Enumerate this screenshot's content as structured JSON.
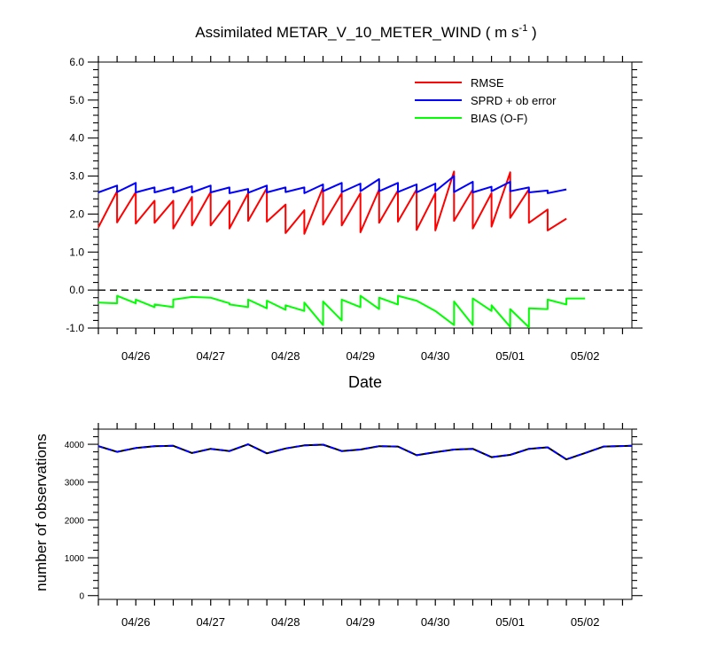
{
  "figure": {
    "title_main": "Assimilated METAR_V_10_METER_WIND ( m s",
    "title_sup": "-1",
    "title_end": " )"
  },
  "chart_data": [
    {
      "type": "line",
      "title": "Assimilated METAR_V_10_METER_WIND ( m s-1 )",
      "xlabel": "Date",
      "ylabel": "",
      "x_tick_labels": [
        "04/26",
        "04/27",
        "04/28",
        "04/29",
        "04/30",
        "05/01",
        "05/02"
      ],
      "y_tick_labels": [
        "-1.0",
        "0.0",
        "1.0",
        "2.0",
        "3.0",
        "4.0",
        "5.0",
        "6.0"
      ],
      "xlim": [
        0,
        7.125
      ],
      "ylim": [
        -1,
        6
      ],
      "reference_line": {
        "y": 0,
        "style": "dashed",
        "color": "#000000"
      },
      "legend_position": "top-right",
      "series": [
        {
          "name": "RMSE",
          "color": "#ff0000",
          "points": [
            [
              0.0,
              1.65
            ],
            [
              0.25,
              2.6
            ],
            [
              0.25,
              1.78
            ],
            [
              0.5,
              2.58
            ],
            [
              0.5,
              1.75
            ],
            [
              0.75,
              2.35
            ],
            [
              0.75,
              1.77
            ],
            [
              1.0,
              2.35
            ],
            [
              1.0,
              1.62
            ],
            [
              1.25,
              2.45
            ],
            [
              1.25,
              1.7
            ],
            [
              1.5,
              2.58
            ],
            [
              1.5,
              1.7
            ],
            [
              1.75,
              2.35
            ],
            [
              1.75,
              1.62
            ],
            [
              2.0,
              2.55
            ],
            [
              2.0,
              1.82
            ],
            [
              2.25,
              2.68
            ],
            [
              2.25,
              1.8
            ],
            [
              2.5,
              2.25
            ],
            [
              2.5,
              1.5
            ],
            [
              2.75,
              2.1
            ],
            [
              2.75,
              1.48
            ],
            [
              3.0,
              2.7
            ],
            [
              3.0,
              1.72
            ],
            [
              3.25,
              2.55
            ],
            [
              3.25,
              1.7
            ],
            [
              3.5,
              2.55
            ],
            [
              3.5,
              1.52
            ],
            [
              3.75,
              2.65
            ],
            [
              3.75,
              1.77
            ],
            [
              4.0,
              2.62
            ],
            [
              4.0,
              1.8
            ],
            [
              4.25,
              2.65
            ],
            [
              4.25,
              1.58
            ],
            [
              4.5,
              2.55
            ],
            [
              4.5,
              1.57
            ],
            [
              4.75,
              3.12
            ],
            [
              4.75,
              1.82
            ],
            [
              5.0,
              2.65
            ],
            [
              5.0,
              1.62
            ],
            [
              5.25,
              2.55
            ],
            [
              5.25,
              1.67
            ],
            [
              5.5,
              3.1
            ],
            [
              5.5,
              1.9
            ],
            [
              5.75,
              2.65
            ],
            [
              5.75,
              1.77
            ],
            [
              6.0,
              2.12
            ],
            [
              6.0,
              1.57
            ],
            [
              6.25,
              1.88
            ]
          ]
        },
        {
          "name": "SPRD + ob error",
          "color": "#0000ff",
          "points": [
            [
              0.0,
              2.57
            ],
            [
              0.25,
              2.75
            ],
            [
              0.25,
              2.58
            ],
            [
              0.5,
              2.82
            ],
            [
              0.5,
              2.57
            ],
            [
              0.75,
              2.7
            ],
            [
              0.75,
              2.57
            ],
            [
              1.0,
              2.7
            ],
            [
              1.0,
              2.57
            ],
            [
              1.25,
              2.73
            ],
            [
              1.25,
              2.57
            ],
            [
              1.5,
              2.75
            ],
            [
              1.5,
              2.57
            ],
            [
              1.75,
              2.7
            ],
            [
              1.75,
              2.55
            ],
            [
              2.0,
              2.66
            ],
            [
              2.0,
              2.56
            ],
            [
              2.25,
              2.75
            ],
            [
              2.25,
              2.57
            ],
            [
              2.5,
              2.7
            ],
            [
              2.5,
              2.58
            ],
            [
              2.75,
              2.7
            ],
            [
              2.75,
              2.55
            ],
            [
              3.0,
              2.78
            ],
            [
              3.0,
              2.6
            ],
            [
              3.25,
              2.82
            ],
            [
              3.25,
              2.58
            ],
            [
              3.5,
              2.8
            ],
            [
              3.5,
              2.6
            ],
            [
              3.75,
              2.92
            ],
            [
              3.75,
              2.6
            ],
            [
              4.0,
              2.82
            ],
            [
              4.0,
              2.58
            ],
            [
              4.25,
              2.78
            ],
            [
              4.25,
              2.57
            ],
            [
              4.5,
              2.8
            ],
            [
              4.5,
              2.6
            ],
            [
              4.75,
              3.0
            ],
            [
              4.75,
              2.58
            ],
            [
              5.0,
              2.85
            ],
            [
              5.0,
              2.57
            ],
            [
              5.25,
              2.72
            ],
            [
              5.25,
              2.6
            ],
            [
              5.5,
              2.85
            ],
            [
              5.5,
              2.6
            ],
            [
              5.75,
              2.7
            ],
            [
              5.75,
              2.57
            ],
            [
              6.0,
              2.62
            ],
            [
              6.0,
              2.55
            ],
            [
              6.25,
              2.65
            ]
          ]
        },
        {
          "name": "BIAS (O-F)",
          "color": "#00ff00",
          "points": [
            [
              0.0,
              -0.33
            ],
            [
              0.25,
              -0.35
            ],
            [
              0.25,
              -0.15
            ],
            [
              0.5,
              -0.35
            ],
            [
              0.5,
              -0.25
            ],
            [
              0.75,
              -0.45
            ],
            [
              0.75,
              -0.38
            ],
            [
              1.0,
              -0.45
            ],
            [
              1.0,
              -0.25
            ],
            [
              1.25,
              -0.18
            ],
            [
              1.5,
              -0.2
            ],
            [
              1.75,
              -0.35
            ],
            [
              1.75,
              -0.38
            ],
            [
              2.0,
              -0.45
            ],
            [
              2.0,
              -0.25
            ],
            [
              2.25,
              -0.48
            ],
            [
              2.25,
              -0.28
            ],
            [
              2.5,
              -0.52
            ],
            [
              2.5,
              -0.4
            ],
            [
              2.75,
              -0.55
            ],
            [
              2.75,
              -0.33
            ],
            [
              3.0,
              -0.92
            ],
            [
              3.0,
              -0.3
            ],
            [
              3.25,
              -0.8
            ],
            [
              3.25,
              -0.25
            ],
            [
              3.5,
              -0.45
            ],
            [
              3.5,
              -0.15
            ],
            [
              3.75,
              -0.5
            ],
            [
              3.75,
              -0.2
            ],
            [
              4.0,
              -0.38
            ],
            [
              4.0,
              -0.15
            ],
            [
              4.25,
              -0.28
            ],
            [
              4.5,
              -0.55
            ],
            [
              4.75,
              -0.92
            ],
            [
              4.75,
              -0.3
            ],
            [
              5.0,
              -0.92
            ],
            [
              5.0,
              -0.22
            ],
            [
              5.25,
              -0.55
            ],
            [
              5.25,
              -0.4
            ],
            [
              5.5,
              -0.97
            ],
            [
              5.5,
              -0.5
            ],
            [
              5.75,
              -0.98
            ],
            [
              5.75,
              -0.48
            ],
            [
              6.0,
              -0.5
            ],
            [
              6.0,
              -0.25
            ],
            [
              6.25,
              -0.38
            ],
            [
              6.25,
              -0.22
            ],
            [
              6.5,
              -0.22
            ]
          ]
        }
      ]
    },
    {
      "type": "line",
      "title": "",
      "xlabel": "",
      "ylabel": "number of observations",
      "x_tick_labels": [
        "04/26",
        "04/27",
        "04/28",
        "04/29",
        "04/30",
        "05/01",
        "05/02"
      ],
      "y_tick_labels": [
        "0",
        "1000",
        "2000",
        "3000",
        "4000"
      ],
      "xlim": [
        0,
        7.125
      ],
      "ylim": [
        -100,
        4400
      ],
      "series": [
        {
          "color": "#000000",
          "style": "solid",
          "points": [
            [
              0,
              3950
            ],
            [
              0.25,
              3800
            ],
            [
              0.5,
              3900
            ],
            [
              0.75,
              3950
            ],
            [
              1.0,
              3960
            ],
            [
              1.25,
              3770
            ],
            [
              1.5,
              3880
            ],
            [
              1.75,
              3820
            ],
            [
              2.0,
              4000
            ],
            [
              2.25,
              3760
            ],
            [
              2.5,
              3890
            ],
            [
              2.75,
              3970
            ],
            [
              3.0,
              3990
            ],
            [
              3.25,
              3820
            ],
            [
              3.5,
              3860
            ],
            [
              3.75,
              3950
            ],
            [
              4.0,
              3940
            ],
            [
              4.25,
              3710
            ],
            [
              4.5,
              3790
            ],
            [
              4.75,
              3860
            ],
            [
              5.0,
              3880
            ],
            [
              5.25,
              3660
            ],
            [
              5.5,
              3720
            ],
            [
              5.75,
              3880
            ],
            [
              6.0,
              3920
            ],
            [
              6.25,
              3600
            ],
            [
              6.5,
              3770
            ],
            [
              6.75,
              3940
            ],
            [
              7.125,
              3960
            ]
          ]
        },
        {
          "color": "#0000ff",
          "style": "dashed",
          "points": [
            [
              0,
              3950
            ],
            [
              0.25,
              3800
            ],
            [
              0.5,
              3900
            ],
            [
              0.75,
              3950
            ],
            [
              1.0,
              3960
            ],
            [
              1.25,
              3770
            ],
            [
              1.5,
              3880
            ],
            [
              1.75,
              3820
            ],
            [
              2.0,
              4000
            ],
            [
              2.25,
              3760
            ],
            [
              2.5,
              3890
            ],
            [
              2.75,
              3970
            ],
            [
              3.0,
              3990
            ],
            [
              3.25,
              3820
            ],
            [
              3.5,
              3860
            ],
            [
              3.75,
              3950
            ],
            [
              4.0,
              3940
            ],
            [
              4.25,
              3710
            ],
            [
              4.5,
              3790
            ],
            [
              4.75,
              3860
            ],
            [
              5.0,
              3880
            ],
            [
              5.25,
              3660
            ],
            [
              5.5,
              3720
            ],
            [
              5.75,
              3880
            ],
            [
              6.0,
              3920
            ],
            [
              6.25,
              3600
            ],
            [
              6.5,
              3770
            ],
            [
              6.75,
              3940
            ],
            [
              7.125,
              3960
            ]
          ]
        }
      ]
    }
  ]
}
